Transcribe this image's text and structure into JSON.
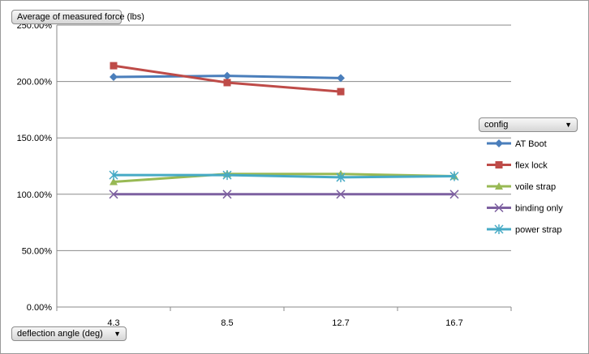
{
  "y_field_label": "Average of measured force (lbs)",
  "x_field_label": "deflection angle (deg)",
  "legend_title": "config",
  "chart_data": {
    "type": "line",
    "title": "",
    "xlabel": "deflection angle (deg)",
    "ylabel": "Average of measured force (lbs)",
    "categories": [
      "4.3",
      "8.5",
      "12.7",
      "16.7"
    ],
    "y_ticks": [
      0,
      0.5,
      1.0,
      1.5,
      2.0,
      2.5
    ],
    "y_tick_labels": [
      "0.00%",
      "50.00%",
      "100.00%",
      "150.00%",
      "200.00%",
      "250.00%"
    ],
    "ylim": [
      0,
      2.5
    ],
    "grid": true,
    "legend_position": "right",
    "series": [
      {
        "name": "AT Boot",
        "color": "#4a7ebb",
        "marker": "diamond",
        "values": [
          2.04,
          2.05,
          2.03,
          null
        ]
      },
      {
        "name": "flex lock",
        "color": "#be4b48",
        "marker": "square",
        "values": [
          2.14,
          1.99,
          1.91,
          null
        ]
      },
      {
        "name": "voile strap",
        "color": "#98b954",
        "marker": "triangle",
        "values": [
          1.11,
          1.18,
          1.18,
          1.16
        ]
      },
      {
        "name": "binding only",
        "color": "#7d60a0",
        "marker": "x",
        "values": [
          1.0,
          1.0,
          1.0,
          1.0
        ]
      },
      {
        "name": "power strap",
        "color": "#46aac5",
        "marker": "star",
        "values": [
          1.17,
          1.17,
          1.15,
          1.16
        ]
      }
    ]
  }
}
